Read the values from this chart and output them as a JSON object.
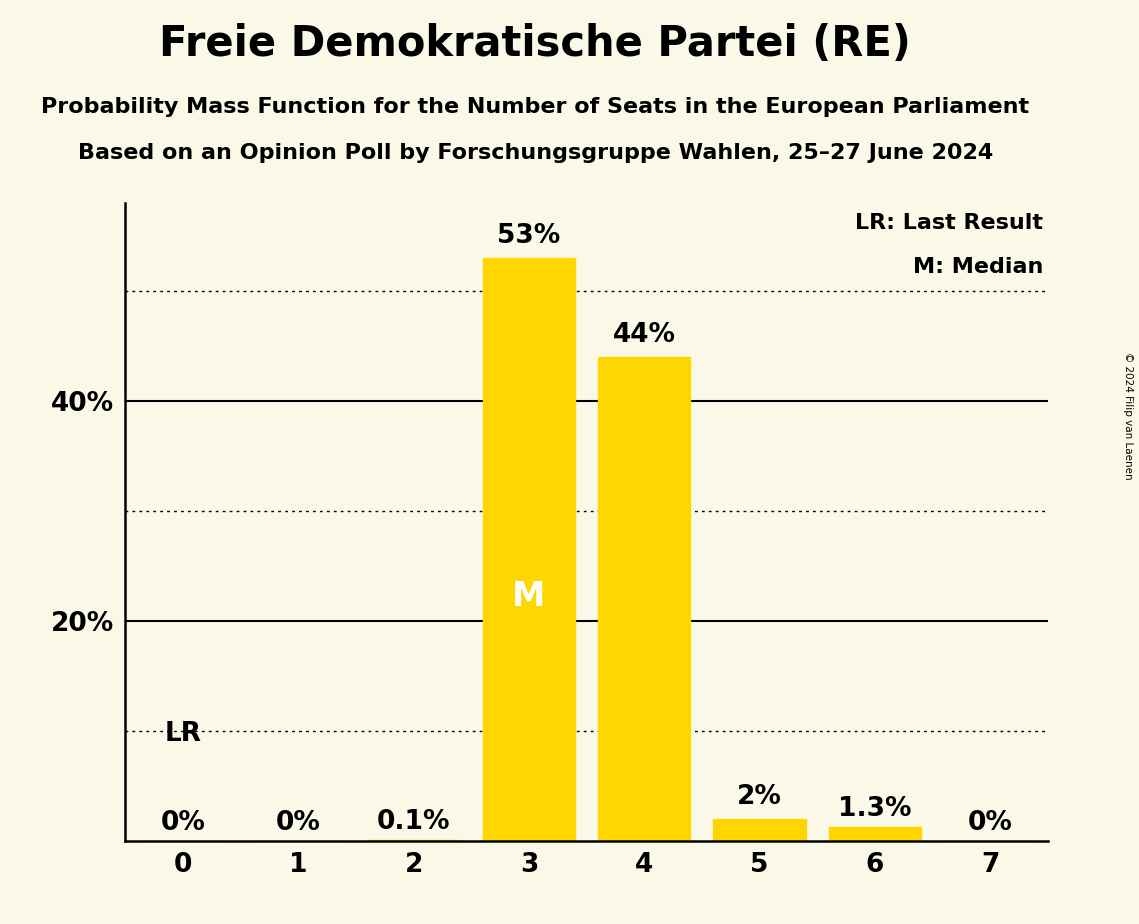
{
  "title": "Freie Demokratische Partei (RE)",
  "subtitle1": "Probability Mass Function for the Number of Seats in the European Parliament",
  "subtitle2": "Based on an Opinion Poll by Forschungsgruppe Wahlen, 25–27 June 2024",
  "copyright": "© 2024 Filip van Laenen",
  "categories": [
    0,
    1,
    2,
    3,
    4,
    5,
    6,
    7
  ],
  "values": [
    0.0,
    0.0,
    0.1,
    53.0,
    44.0,
    2.0,
    1.3,
    0.0
  ],
  "bar_color": "#FFD700",
  "background_color": "#FAF9E8",
  "median_bar": 3,
  "lr_bar": 0,
  "median_label": "M",
  "median_label_color": "#FFFFFF",
  "lr_label": "LR",
  "solid_gridlines": [
    20,
    40
  ],
  "dotted_gridlines": [
    10,
    30,
    50
  ],
  "xlim": [
    -0.5,
    7.5
  ],
  "ylim": [
    0,
    58
  ],
  "ytick_solid": [
    20,
    40
  ],
  "ytick_solid_labels": [
    "20%",
    "40%"
  ],
  "value_labels": [
    "0%",
    "0%",
    "0.1%",
    "53%",
    "44%",
    "2%",
    "1.3%",
    "0%"
  ],
  "legend_lr": "LR: Last Result",
  "legend_m": "M: Median",
  "title_fontsize": 30,
  "subtitle_fontsize": 16,
  "tick_fontsize": 19,
  "bar_label_fontsize": 19,
  "legend_fontsize": 16,
  "median_label_fontsize": 24,
  "lr_label_fontsize": 19
}
